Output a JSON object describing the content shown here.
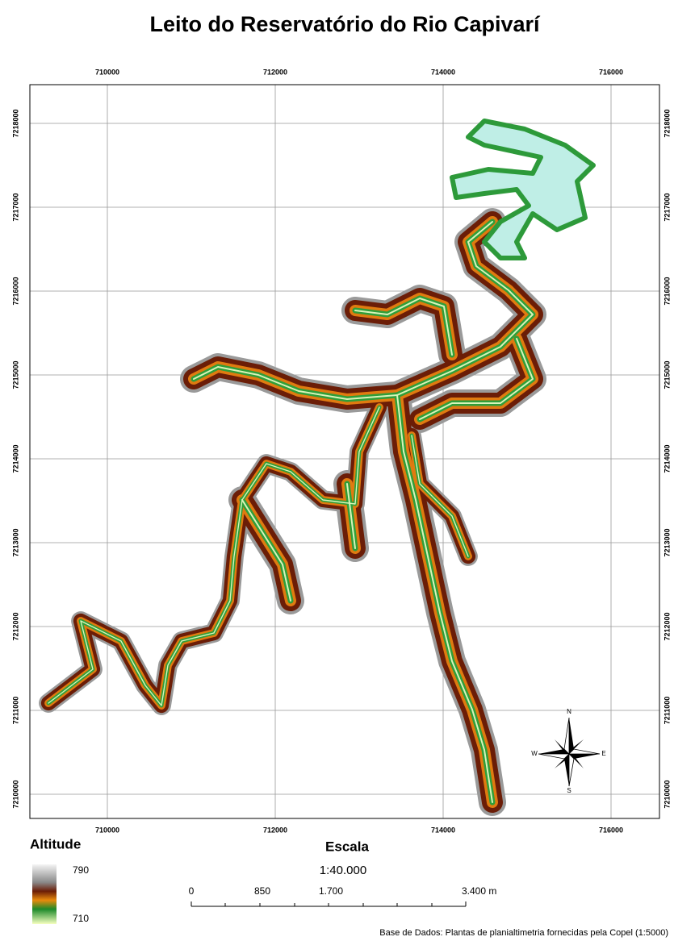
{
  "header": {
    "title": "Leito do Reservatório do Rio Capivarí"
  },
  "map": {
    "x_ticks": [
      710000,
      712000,
      714000,
      716000
    ],
    "y_ticks": [
      7210000,
      7211000,
      7212000,
      7213000,
      7214000,
      7215000,
      7216000,
      7217000,
      7218000
    ],
    "compass": {
      "n": "N",
      "s": "S",
      "w": "W",
      "e": "E"
    }
  },
  "legend": {
    "title": "Altitude",
    "max": 790,
    "min": 710
  },
  "scale": {
    "title": "Escala",
    "ratio": "1:40.000",
    "labels": [
      "0",
      "850",
      "1.700",
      "3.400  m"
    ]
  },
  "footer": {
    "source": "Base de Dados: Plantas de planialtimetria fornecidas pela Copel (1:5000)"
  }
}
